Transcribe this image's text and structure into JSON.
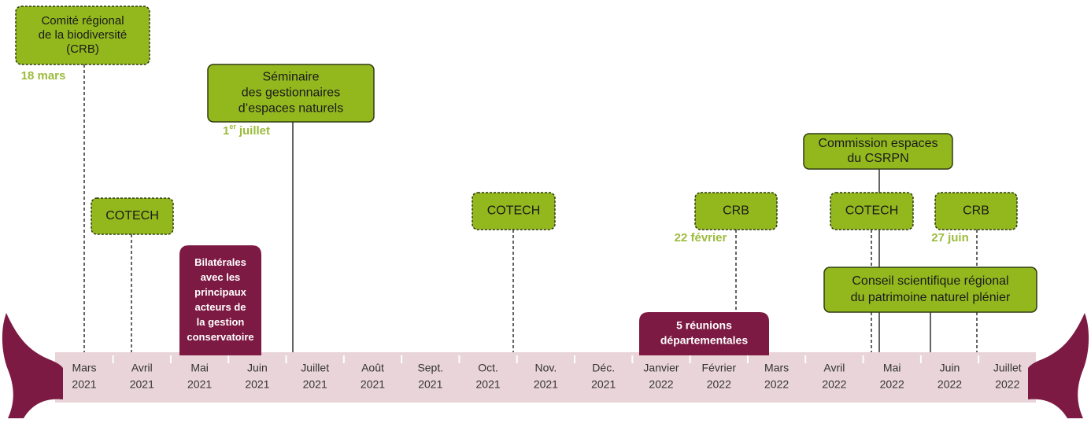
{
  "events": [
    {
      "lines": [
        "Comité régional",
        "de la biodiversité",
        "(CRB)"
      ],
      "date": "18 mars"
    },
    {
      "lines": [
        "Séminaire",
        "des gestionnaires",
        "d’espaces naturels"
      ],
      "date_parts": [
        "1",
        "er",
        "juillet"
      ]
    },
    {
      "lines": [
        "COTECH"
      ]
    },
    {
      "lines": [
        "Bilatérales",
        "avec les",
        "principaux",
        "acteurs de",
        "la gestion",
        "conservatoire"
      ]
    },
    {
      "lines": [
        "COTECH"
      ]
    },
    {
      "lines": [
        "CRB"
      ],
      "date": "22 février"
    },
    {
      "lines": [
        "5 réunions",
        "départementales"
      ]
    },
    {
      "lines": [
        "Commission espaces",
        "du CSRPN"
      ]
    },
    {
      "lines": [
        "COTECH"
      ]
    },
    {
      "lines": [
        "CRB"
      ],
      "date": "27 juin"
    },
    {
      "lines": [
        "Conseil scientifique régional",
        "du patrimoine naturel plénier"
      ]
    }
  ],
  "months": [
    [
      "Mars",
      "2021"
    ],
    [
      "Avril",
      "2021"
    ],
    [
      "Mai",
      "2021"
    ],
    [
      "Juin",
      "2021"
    ],
    [
      "Juillet",
      "2021"
    ],
    [
      "Août",
      "2021"
    ],
    [
      "Sept.",
      "2021"
    ],
    [
      "Oct.",
      "2021"
    ],
    [
      "Nov.",
      "2021"
    ],
    [
      "Déc.",
      "2021"
    ],
    [
      "Janvier",
      "2022"
    ],
    [
      "Février",
      "2022"
    ],
    [
      "Mars",
      "2022"
    ],
    [
      "Avril",
      "2022"
    ],
    [
      "Mai",
      "2022"
    ],
    [
      "Juin",
      "2022"
    ],
    [
      "Juillet",
      "2022"
    ]
  ]
}
